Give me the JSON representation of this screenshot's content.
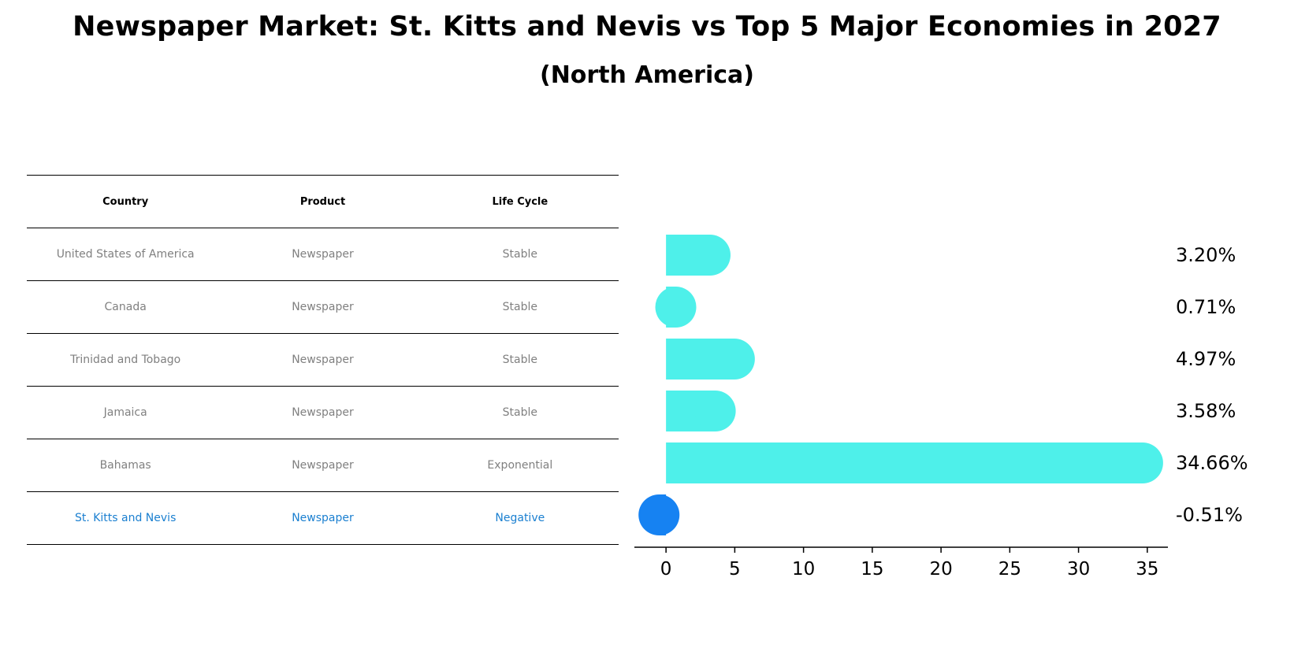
{
  "title": "Newspaper Market: St. Kitts and Nevis vs Top 5 Major Economies in 2027",
  "subtitle": "(North America)",
  "table": {
    "headers": [
      "Country",
      "Product",
      "Life Cycle"
    ],
    "rows": [
      [
        "United States of America",
        "Newspaper",
        "Stable"
      ],
      [
        "Canada",
        "Newspaper",
        "Stable"
      ],
      [
        "Trinidad and Tobago",
        "Newspaper",
        "Stable"
      ],
      [
        "Jamaica",
        "Newspaper",
        "Stable"
      ],
      [
        "Bahamas",
        "Newspaper",
        "Exponential"
      ],
      [
        "St. Kitts and Nevis",
        "Newspaper",
        "Negative"
      ]
    ],
    "highlight_row": 5
  },
  "colors": {
    "bar": "#4ef0ea",
    "highlight": "#1682f2",
    "highlight_text": "#1a7fd0",
    "muted_text": "#808080"
  },
  "chart_data": {
    "type": "bar",
    "orientation": "horizontal",
    "categories": [
      "United States of America",
      "Canada",
      "Trinidad and Tobago",
      "Jamaica",
      "Bahamas",
      "St. Kitts and Nevis"
    ],
    "values": [
      3.2,
      0.71,
      4.97,
      3.58,
      34.66,
      -0.51
    ],
    "labels": [
      "3.20%",
      "0.71%",
      "4.97%",
      "3.58%",
      "34.66%",
      "-0.51%"
    ],
    "xlim": [
      -2.3,
      36.5
    ],
    "xticks": [
      0,
      5,
      10,
      15,
      20,
      25,
      30,
      35
    ],
    "highlight_index": 5,
    "grid": false
  }
}
